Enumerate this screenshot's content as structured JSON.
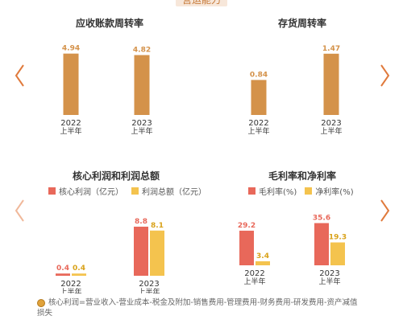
{
  "section_title": "营运能力",
  "footnote": "核心利润=营业收入-营业成本-税金及附加-销售费用-管理费用-财务费用-研发费用-资产减值损失",
  "colors": {
    "ochre": "#d4924a",
    "red": "#e8685a",
    "yellow": "#f4c34e",
    "arrow": "#e07a3c"
  },
  "chart_data": [
    {
      "type": "bar",
      "title": "应收账款周转率",
      "categories": [
        "2022\n上半年",
        "2023\n上半年"
      ],
      "values": [
        4.94,
        4.82
      ],
      "labels": [
        "4.94",
        "4.82"
      ],
      "ylim": [
        0,
        5.5
      ]
    },
    {
      "type": "bar",
      "title": "存货周转率",
      "categories": [
        "2022\n上半年",
        "2023\n上半年"
      ],
      "values": [
        0.84,
        1.47
      ],
      "labels": [
        "0.84",
        "1.47"
      ],
      "ylim": [
        0,
        1.64
      ]
    },
    {
      "type": "bar",
      "title": "核心利润和利润总额",
      "categories": [
        "2022\n上半年",
        "2023\n上半年"
      ],
      "series": [
        {
          "name": "核心利润（亿元）",
          "values": [
            0.4,
            8.8
          ],
          "labels": [
            "0.4",
            "8.8"
          ]
        },
        {
          "name": "利润总额（亿元）",
          "values": [
            0.4,
            8.1
          ],
          "labels": [
            "0.4",
            "8.1"
          ]
        }
      ],
      "ylim": [
        0,
        9.8
      ]
    },
    {
      "type": "bar",
      "title": "毛利率和净利率",
      "categories": [
        "2022\n上半年",
        "2023\n上半年"
      ],
      "series": [
        {
          "name": "毛利率(%)",
          "values": [
            29.2,
            35.6
          ],
          "labels": [
            "29.2",
            "35.6"
          ]
        },
        {
          "name": "净利率(%)",
          "values": [
            3.4,
            19.3
          ],
          "labels": [
            "3.4",
            "19.3"
          ]
        }
      ],
      "ylim": [
        0,
        40
      ]
    }
  ]
}
